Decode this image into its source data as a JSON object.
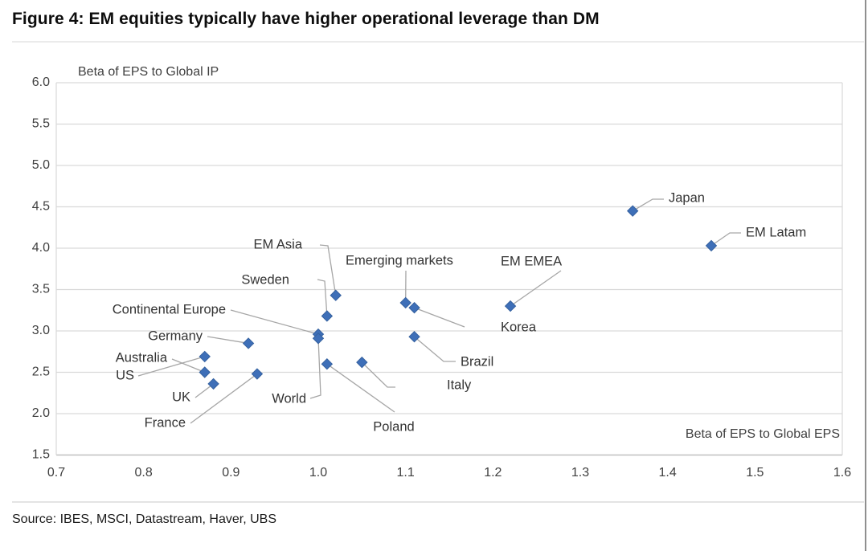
{
  "figure": {
    "title": "Figure 4: EM equities typically have higher operational leverage than DM"
  },
  "source": {
    "text": "Source: IBES, MSCI, Datastream, Haver, UBS"
  },
  "chart_data": {
    "type": "scatter",
    "x_axis": {
      "label": "Beta of EPS to Global EPS",
      "min": 0.7,
      "max": 1.6,
      "ticks": [
        0.7,
        0.8,
        0.9,
        1.0,
        1.1,
        1.2,
        1.3,
        1.4,
        1.5,
        1.6
      ]
    },
    "y_axis": {
      "label": "Beta of EPS to Global IP",
      "min": 1.5,
      "max": 6.0,
      "ticks": [
        1.5,
        2.0,
        2.5,
        3.0,
        3.5,
        4.0,
        4.5,
        5.0,
        5.5,
        6.0
      ]
    },
    "grid": "horizontal",
    "marker": {
      "shape": "diamond",
      "color": "#3E6FB8"
    },
    "leader_line_color": "#a6a6a6",
    "points": [
      {
        "label": "Japan",
        "x": 1.36,
        "y": 4.45
      },
      {
        "label": "EM Latam",
        "x": 1.45,
        "y": 4.03
      },
      {
        "label": "EM Asia",
        "x": 1.02,
        "y": 3.43
      },
      {
        "label": "Emerging markets",
        "x": 1.1,
        "y": 3.34
      },
      {
        "label": "Korea",
        "x": 1.11,
        "y": 3.28
      },
      {
        "label": "EM EMEA",
        "x": 1.22,
        "y": 3.3
      },
      {
        "label": "Sweden",
        "x": 1.01,
        "y": 3.18
      },
      {
        "label": "Continental Europe",
        "x": 1.0,
        "y": 2.96
      },
      {
        "label": "World",
        "x": 1.0,
        "y": 2.91
      },
      {
        "label": "Germany",
        "x": 0.92,
        "y": 2.85
      },
      {
        "label": "US",
        "x": 0.87,
        "y": 2.69
      },
      {
        "label": "Australia",
        "x": 0.87,
        "y": 2.5
      },
      {
        "label": "UK",
        "x": 0.88,
        "y": 2.36
      },
      {
        "label": "France",
        "x": 0.93,
        "y": 2.48
      },
      {
        "label": "Poland",
        "x": 1.01,
        "y": 2.6
      },
      {
        "label": "Italy",
        "x": 1.05,
        "y": 2.62
      },
      {
        "label": "Brazil",
        "x": 1.11,
        "y": 2.93
      }
    ]
  }
}
